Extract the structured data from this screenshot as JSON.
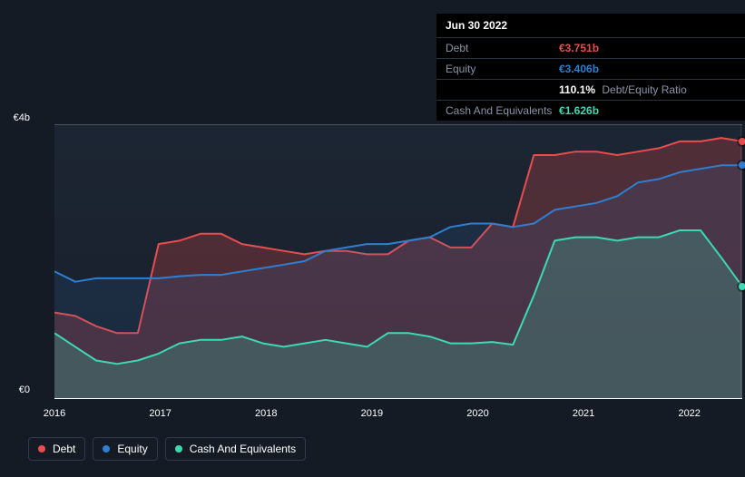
{
  "chart": {
    "type": "area",
    "background_color": "#151b24",
    "plot_background": "#1b2330",
    "grid_color": "#2a3340",
    "text_color": "#ffffff",
    "muted_text_color": "#8a94a6",
    "y_axis": {
      "min": 0,
      "max": 4,
      "ticks": [
        {
          "value": 0,
          "label": "€0"
        },
        {
          "value": 4,
          "label": "€4b"
        }
      ]
    },
    "x_axis": {
      "labels": [
        "2016",
        "2017",
        "2018",
        "2019",
        "2020",
        "2021",
        "2022"
      ]
    },
    "series": {
      "debt": {
        "label": "Debt",
        "color": "#e84d4d",
        "fill_opacity": 0.25,
        "stroke_width": 2,
        "values": [
          1.25,
          1.2,
          1.05,
          0.95,
          0.95,
          2.25,
          2.3,
          2.4,
          2.4,
          2.25,
          2.2,
          2.15,
          2.1,
          2.15,
          2.15,
          2.1,
          2.1,
          2.3,
          2.35,
          2.2,
          2.2,
          2.55,
          2.5,
          3.55,
          3.55,
          3.6,
          3.6,
          3.55,
          3.6,
          3.65,
          3.75,
          3.75,
          3.8,
          3.75
        ]
      },
      "equity": {
        "label": "Equity",
        "color": "#2e7fd1",
        "fill_opacity": 0.12,
        "stroke_width": 2,
        "values": [
          1.85,
          1.7,
          1.75,
          1.75,
          1.75,
          1.75,
          1.78,
          1.8,
          1.8,
          1.85,
          1.9,
          1.95,
          2.0,
          2.15,
          2.2,
          2.25,
          2.25,
          2.3,
          2.35,
          2.5,
          2.55,
          2.55,
          2.5,
          2.55,
          2.75,
          2.8,
          2.85,
          2.95,
          3.15,
          3.2,
          3.3,
          3.35,
          3.4,
          3.4
        ]
      },
      "cash": {
        "label": "Cash And Equivalents",
        "color": "#3dd9b4",
        "fill_opacity": 0.22,
        "stroke_width": 2,
        "values": [
          0.95,
          0.75,
          0.55,
          0.5,
          0.55,
          0.65,
          0.8,
          0.85,
          0.85,
          0.9,
          0.8,
          0.75,
          0.8,
          0.85,
          0.8,
          0.75,
          0.95,
          0.95,
          0.9,
          0.8,
          0.8,
          0.82,
          0.78,
          1.5,
          2.3,
          2.35,
          2.35,
          2.3,
          2.35,
          2.35,
          2.45,
          2.45,
          2.05,
          1.63
        ]
      }
    }
  },
  "tooltip": {
    "date": "Jun 30 2022",
    "debt": {
      "label": "Debt",
      "value": "€3.751b",
      "color": "#e84d4d"
    },
    "equity": {
      "label": "Equity",
      "value": "€3.406b",
      "color": "#2e7fd1"
    },
    "ratio": {
      "value": "110.1%",
      "suffix": "Debt/Equity Ratio",
      "color": "#ffffff"
    },
    "cash": {
      "label": "Cash And Equivalents",
      "value": "€1.626b",
      "color": "#3dd9b4"
    }
  },
  "legend": [
    {
      "label": "Debt",
      "color": "#e84d4d"
    },
    {
      "label": "Equity",
      "color": "#2e7fd1"
    },
    {
      "label": "Cash And Equivalents",
      "color": "#3dd9b4"
    }
  ]
}
